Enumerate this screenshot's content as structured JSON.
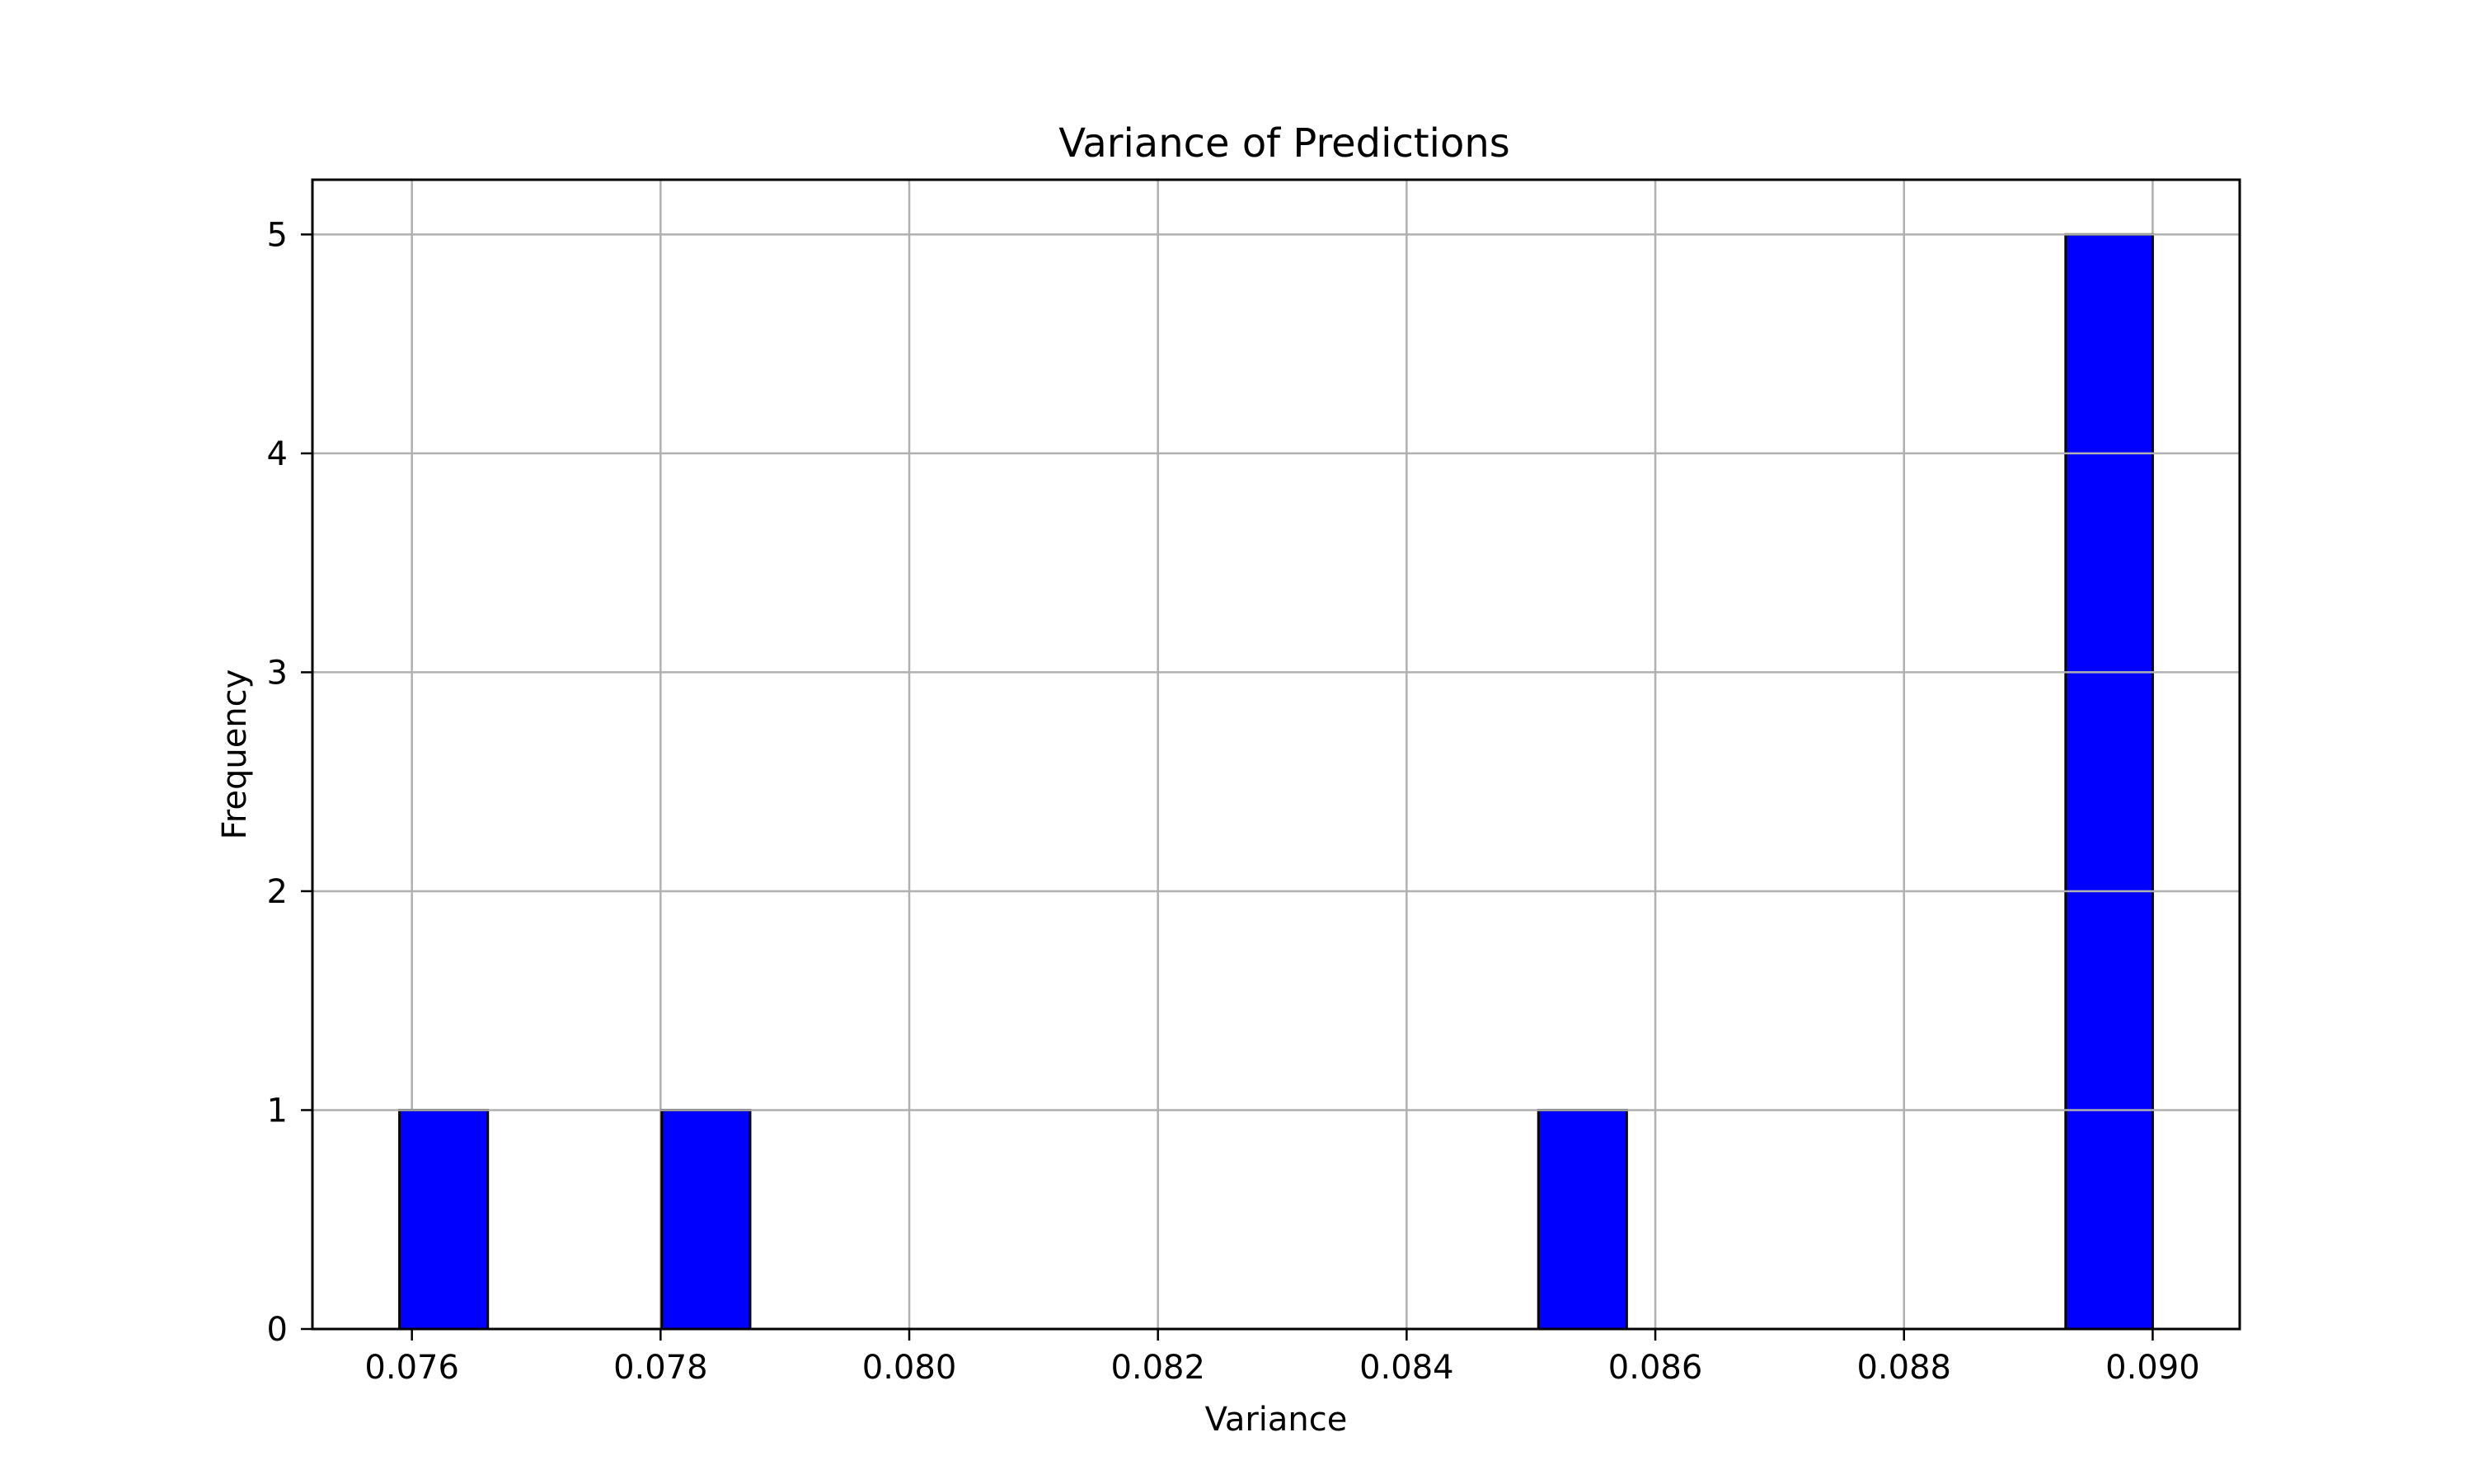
{
  "chart_data": {
    "type": "bar",
    "subtype": "histogram",
    "title": "Variance of Predictions",
    "xlabel": "Variance",
    "ylabel": "Frequency",
    "xlim": [
      0.0752,
      0.0907
    ],
    "ylim": [
      0,
      5.25
    ],
    "x_ticks": [
      0.076,
      0.078,
      0.08,
      0.082,
      0.084,
      0.086,
      0.088,
      0.09
    ],
    "x_tick_labels": [
      "0.076",
      "0.078",
      "0.080",
      "0.082",
      "0.084",
      "0.086",
      "0.088",
      "0.090"
    ],
    "y_ticks": [
      0,
      1,
      2,
      3,
      4,
      5
    ],
    "y_tick_labels": [
      "0",
      "1",
      "2",
      "3",
      "4",
      "5"
    ],
    "bins": [
      {
        "x0": 0.0759,
        "x1": 0.07661,
        "value": 1
      },
      {
        "x0": 0.07801,
        "x1": 0.07872,
        "value": 1
      },
      {
        "x0": 0.08506,
        "x1": 0.08577,
        "value": 1
      },
      {
        "x0": 0.0893,
        "x1": 0.09,
        "value": 5
      }
    ],
    "grid": true,
    "bar_color": "#0000ff",
    "bar_edge_color": "#000000",
    "grid_color": "#b0b0b0"
  }
}
